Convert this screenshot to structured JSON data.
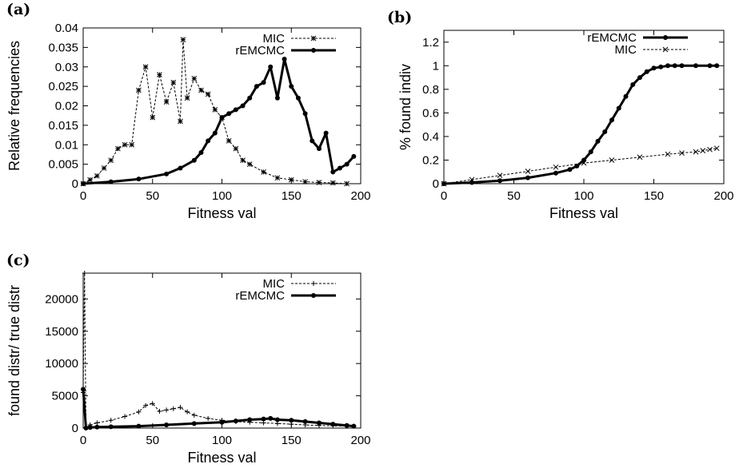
{
  "colors": {
    "ink": "#000000",
    "background": "#ffffff"
  },
  "chart_data": [
    {
      "panel": "(a)",
      "type": "line",
      "xlabel": "Fitness val",
      "ylabel": "Relative frequencies",
      "xlim": [
        0,
        200
      ],
      "ylim": [
        0,
        0.04
      ],
      "xticks": [
        "0",
        "50",
        "100",
        "150",
        "200"
      ],
      "yticks": [
        "0",
        "0.005",
        "0.01",
        "0.015",
        "0.02",
        "0.025",
        "0.03",
        "0.035",
        "0.04"
      ],
      "grid": false,
      "legend_position": "top-right",
      "series": [
        {
          "name": "MIC",
          "style": "dashed",
          "marker": "star",
          "x": [
            0,
            5,
            10,
            15,
            20,
            25,
            30,
            35,
            40,
            45,
            50,
            55,
            60,
            65,
            70,
            72,
            75,
            80,
            85,
            90,
            95,
            100,
            105,
            110,
            115,
            120,
            130,
            140,
            150,
            160,
            170,
            180,
            190
          ],
          "y": [
            0,
            0.001,
            0.002,
            0.004,
            0.006,
            0.009,
            0.01,
            0.01,
            0.024,
            0.03,
            0.017,
            0.028,
            0.021,
            0.026,
            0.016,
            0.037,
            0.022,
            0.027,
            0.024,
            0.023,
            0.019,
            0.017,
            0.011,
            0.009,
            0.006,
            0.005,
            0.003,
            0.0015,
            0.001,
            0.0005,
            0.0003,
            0.0002,
            0
          ]
        },
        {
          "name": "rEMCMC",
          "style": "solid-thick",
          "marker": "dot",
          "x": [
            0,
            20,
            40,
            60,
            70,
            80,
            85,
            90,
            95,
            100,
            105,
            110,
            115,
            120,
            125,
            130,
            135,
            140,
            145,
            150,
            155,
            160,
            165,
            170,
            175,
            180,
            185,
            190,
            195
          ],
          "y": [
            0,
            0.0005,
            0.0012,
            0.0025,
            0.004,
            0.006,
            0.008,
            0.011,
            0.013,
            0.017,
            0.018,
            0.019,
            0.02,
            0.022,
            0.025,
            0.026,
            0.03,
            0.022,
            0.032,
            0.025,
            0.022,
            0.018,
            0.011,
            0.009,
            0.013,
            0.003,
            0.004,
            0.005,
            0.007
          ]
        }
      ]
    },
    {
      "panel": "(b)",
      "type": "line",
      "xlabel": "Fitness val",
      "ylabel": "% found indiv",
      "xlim": [
        0,
        200
      ],
      "ylim": [
        0,
        1.3
      ],
      "xticks": [
        "0",
        "50",
        "100",
        "150",
        "200"
      ],
      "yticks": [
        "0",
        "0.2",
        "0.4",
        "0.6",
        "0.8",
        "1",
        "1.2"
      ],
      "grid": false,
      "legend_position": "top-right",
      "series": [
        {
          "name": "rEMCMC",
          "style": "solid-thick",
          "marker": "dot",
          "x": [
            0,
            20,
            40,
            60,
            80,
            90,
            95,
            100,
            105,
            110,
            115,
            120,
            125,
            130,
            135,
            140,
            145,
            150,
            155,
            160,
            165,
            170,
            180,
            190,
            195
          ],
          "y": [
            0,
            0.01,
            0.025,
            0.05,
            0.09,
            0.12,
            0.15,
            0.2,
            0.27,
            0.36,
            0.44,
            0.54,
            0.64,
            0.74,
            0.84,
            0.9,
            0.95,
            0.98,
            0.99,
            1,
            1,
            1,
            1,
            1,
            1
          ]
        },
        {
          "name": "MIC",
          "style": "dashed",
          "marker": "x",
          "x": [
            0,
            20,
            40,
            60,
            80,
            100,
            120,
            140,
            160,
            170,
            180,
            185,
            190,
            195
          ],
          "y": [
            0,
            0.035,
            0.07,
            0.105,
            0.14,
            0.175,
            0.2,
            0.225,
            0.25,
            0.26,
            0.27,
            0.28,
            0.29,
            0.3
          ]
        }
      ]
    },
    {
      "panel": "(c)",
      "type": "line",
      "xlabel": "Fitness val",
      "ylabel": "found distr/ true distr",
      "xlim": [
        0,
        200
      ],
      "ylim": [
        0,
        24000
      ],
      "xticks": [
        "0",
        "50",
        "100",
        "150",
        "200"
      ],
      "yticks": [
        "0",
        "5000",
        "10000",
        "15000",
        "20000"
      ],
      "grid": false,
      "legend_position": "top-right",
      "series": [
        {
          "name": "MIC",
          "style": "dashed",
          "marker": "plus",
          "x": [
            0,
            1,
            2,
            5,
            10,
            20,
            30,
            40,
            45,
            50,
            55,
            60,
            65,
            70,
            75,
            80,
            90,
            100,
            110,
            120,
            130,
            140,
            150,
            160,
            170,
            180,
            190,
            195
          ],
          "y": [
            5500,
            24000,
            0,
            500,
            800,
            1200,
            1800,
            2500,
            3500,
            3800,
            2600,
            2800,
            3000,
            3200,
            2500,
            2000,
            1500,
            1200,
            1000,
            900,
            800,
            700,
            600,
            500,
            400,
            350,
            300,
            300
          ]
        },
        {
          "name": "rEMCMC",
          "style": "solid-thick",
          "marker": "dot",
          "x": [
            0,
            2,
            5,
            10,
            20,
            40,
            60,
            80,
            100,
            110,
            120,
            130,
            135,
            140,
            150,
            160,
            170,
            180,
            190,
            195
          ],
          "y": [
            6000,
            0,
            100,
            150,
            200,
            300,
            500,
            700,
            900,
            1100,
            1300,
            1400,
            1500,
            1300,
            1200,
            1000,
            800,
            600,
            400,
            300
          ]
        }
      ]
    }
  ]
}
